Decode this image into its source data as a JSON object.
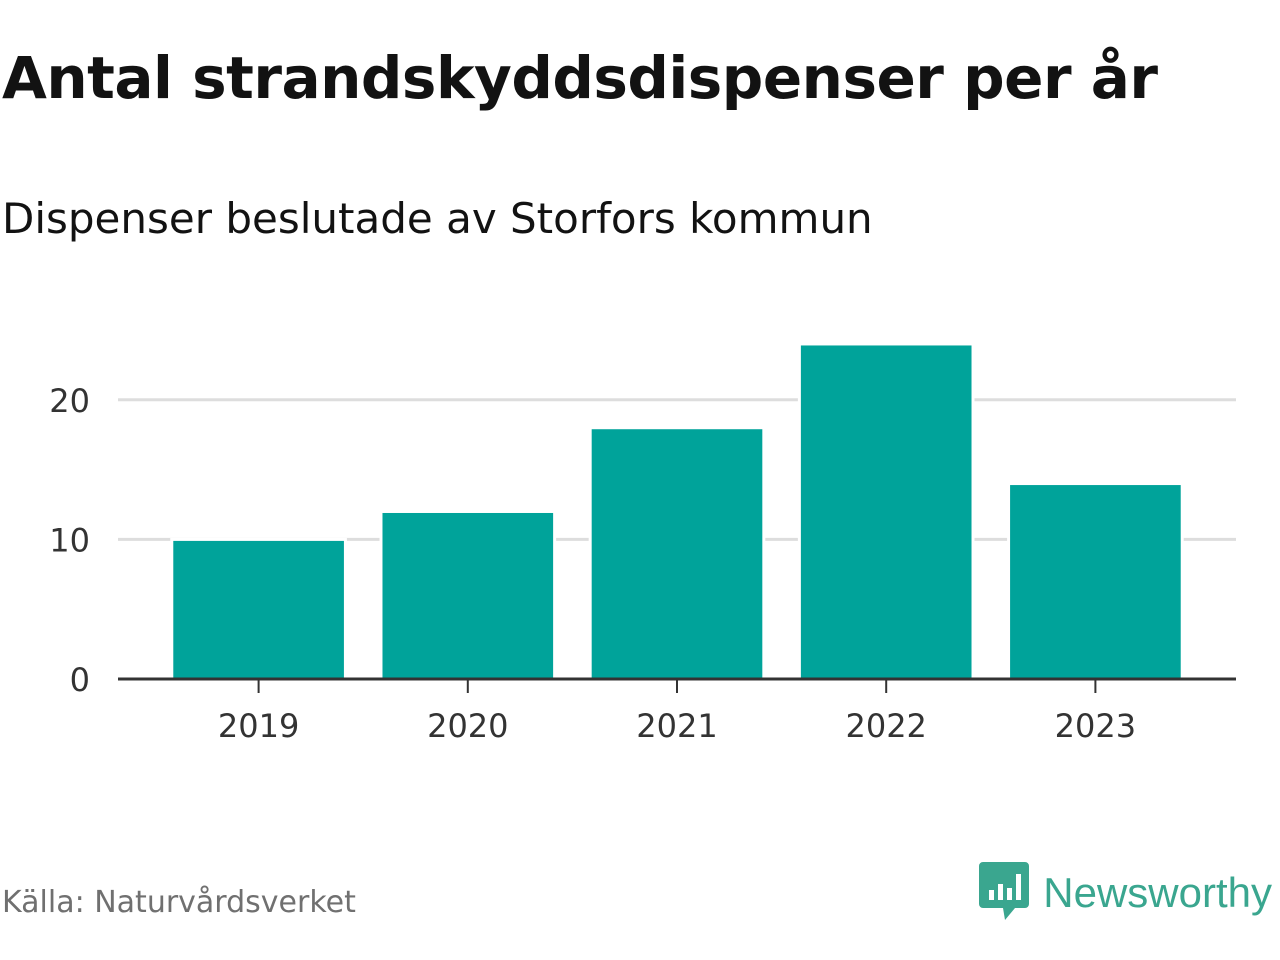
{
  "header": {
    "title": "Antal strandskyddsdispenser per år",
    "subtitle": "Dispenser beslutade av Storfors kommun"
  },
  "footer": {
    "source": "Källa: Naturvårdsverket",
    "brand": "Newsworthy",
    "brand_icon": "newsworthy-logo-icon"
  },
  "colors": {
    "bar": "#00a39a",
    "grid": "#dddddd",
    "axis": "#333333",
    "brand": "#3aa68f"
  },
  "chart_data": {
    "type": "bar",
    "title": "Antal strandskyddsdispenser per år",
    "subtitle": "Dispenser beslutade av Storfors kommun",
    "categories": [
      "2019",
      "2020",
      "2021",
      "2022",
      "2023"
    ],
    "values": [
      10,
      12,
      18,
      24,
      14
    ],
    "xlabel": "",
    "ylabel": "",
    "ylim": [
      0,
      25
    ],
    "yticks": [
      0,
      10,
      20
    ],
    "grid": true,
    "legend": "none"
  }
}
